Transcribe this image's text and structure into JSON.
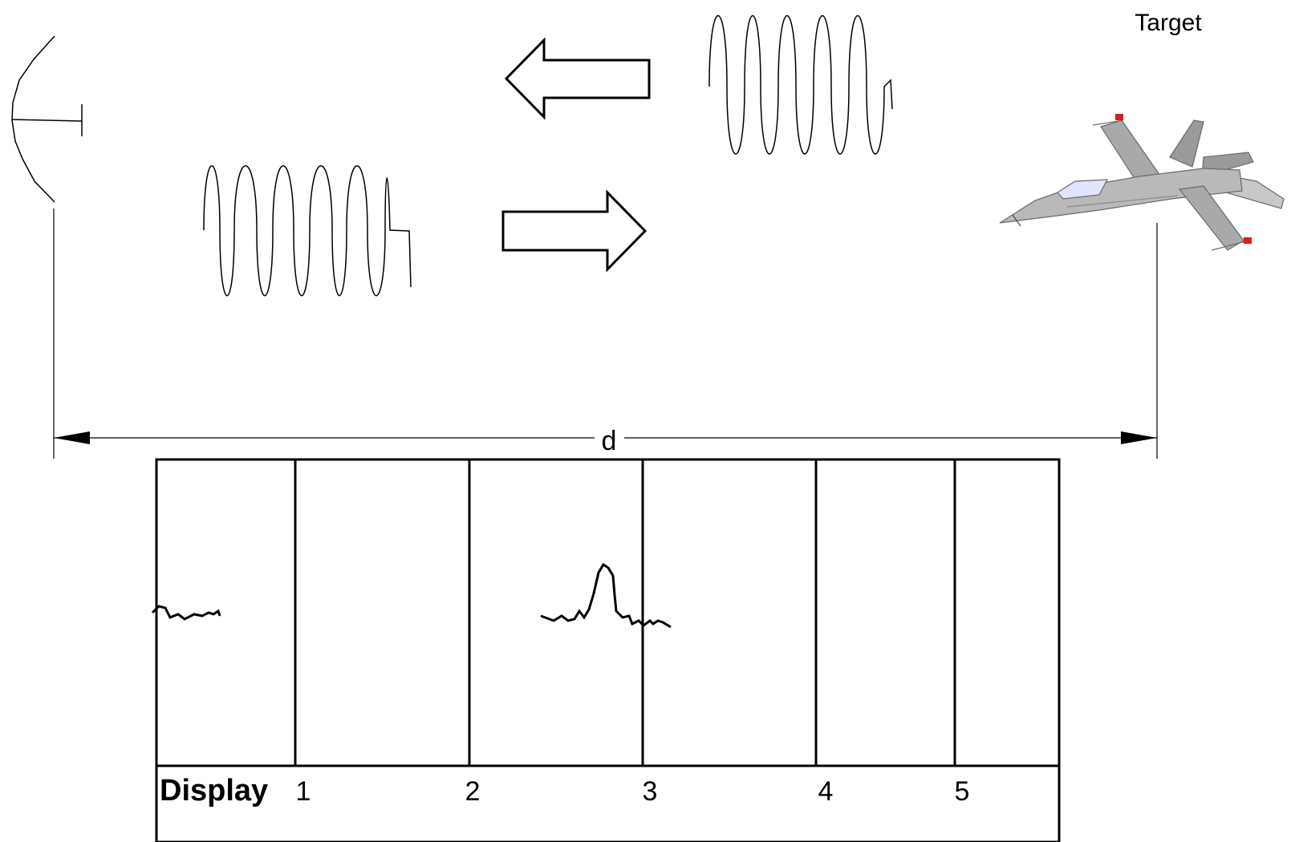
{
  "target_label": "Target",
  "distance_label": "d",
  "display": {
    "title": "Display",
    "ticks": [
      "1",
      "2",
      "3",
      "4",
      "5"
    ]
  },
  "colors": {
    "ink": "#000000",
    "aircraft_body": "#b9b9b9",
    "aircraft_dark": "#8a8a8a",
    "canopy": "#dfe3ff",
    "wingtip": "#d81e1e"
  },
  "icons": [
    "radar-antenna-icon",
    "aircraft-target-icon",
    "left-arrow-icon",
    "right-arrow-icon"
  ]
}
